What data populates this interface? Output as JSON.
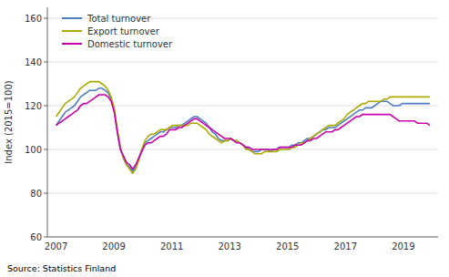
{
  "chart_data": {
    "type": "line",
    "ylabel": "Index (2015=100)",
    "source": "Source: Statistics Finland",
    "xlim": [
      2006.7,
      2020.2
    ],
    "xticks": [
      2007,
      2009,
      2011,
      2013,
      2015,
      2017,
      2019
    ],
    "ylim": [
      60,
      165
    ],
    "yticks": [
      60,
      80,
      100,
      120,
      140,
      160
    ],
    "grid": "y",
    "legend": "upper left",
    "x": [
      2007,
      2007.1059,
      2007.2117,
      2007.3176,
      2007.4235,
      2007.5294,
      2007.6352,
      2007.7411,
      2007.847,
      2007.9529,
      2008.0587,
      2008.1646,
      2008.2705,
      2008.3764,
      2008.4822,
      2008.5881,
      2008.694,
      2008.7999,
      2008.9057,
      2009.0116,
      2009.1175,
      2009.2234,
      2009.3292,
      2009.4351,
      2009.541,
      2009.6469,
      2009.7527,
      2009.8586,
      2009.9645,
      2010.0704,
      2010.1762,
      2010.2821,
      2010.388,
      2010.4939,
      2010.5997,
      2010.7056,
      2010.8115,
      2010.9174,
      2011.0232,
      2011.1291,
      2011.235,
      2011.3409,
      2011.4467,
      2011.5526,
      2011.6585,
      2011.7644,
      2011.8702,
      2011.9761,
      2012.082,
      2012.1879,
      2012.2937,
      2012.3996,
      2012.5055,
      2012.6114,
      2012.7172,
      2012.8231,
      2012.929,
      2013.0349,
      2013.1407,
      2013.2466,
      2013.3525,
      2013.4584,
      2013.5642,
      2013.6701,
      2013.776,
      2013.8818,
      2013.9877,
      2014.0936,
      2014.1995,
      2014.3053,
      2014.4112,
      2014.5171,
      2014.623,
      2014.7288,
      2014.8347,
      2014.9406,
      2015.0465,
      2015.1523,
      2015.2582,
      2015.3641,
      2015.47,
      2015.5758,
      2015.6817,
      2015.7876,
      2015.8935,
      2015.9993,
      2016.1052,
      2016.2111,
      2016.317,
      2016.4228,
      2016.5287,
      2016.6346,
      2016.7405,
      2016.8463,
      2016.9522,
      2017.0581,
      2017.164,
      2017.2698,
      2017.3757,
      2017.4816,
      2017.5875,
      2017.6933,
      2017.7992,
      2017.9051,
      2018.011,
      2018.1168,
      2018.2227,
      2018.3286,
      2018.4345,
      2018.5403,
      2018.6462,
      2018.7521,
      2018.858,
      2018.9638,
      2019.0697,
      2019.1756,
      2019.2815,
      2019.3873,
      2019.4932,
      2019.5991,
      2019.705,
      2019.8108,
      2019.9167
    ],
    "series": [
      {
        "name": "Total turnover",
        "color": "#4E7FBF",
        "values": [
          111,
          113,
          115,
          117,
          118,
          119,
          120,
          122,
          124,
          125,
          126,
          127,
          127,
          127,
          128,
          128,
          127,
          126,
          123,
          118,
          108,
          100,
          96,
          93,
          92,
          90,
          92,
          96,
          100,
          103,
          104,
          105,
          106,
          107,
          108,
          108,
          109,
          110,
          110,
          110,
          111,
          111,
          112,
          113,
          114,
          115,
          115,
          114,
          113,
          112,
          110,
          108,
          107,
          105,
          104,
          104,
          104,
          105,
          104,
          104,
          103,
          102,
          101,
          100,
          99,
          99,
          99,
          100,
          100,
          100,
          99,
          100,
          100,
          101,
          101,
          101,
          101,
          102,
          102,
          103,
          103,
          104,
          105,
          105,
          106,
          107,
          108,
          109,
          109,
          110,
          110,
          110,
          111,
          112,
          113,
          114,
          115,
          116,
          117,
          118,
          118,
          119,
          119,
          119,
          120,
          121,
          122,
          122,
          122,
          121,
          120,
          120,
          120,
          121,
          121,
          121,
          121,
          121,
          121,
          121,
          121,
          121,
          121
        ]
      },
      {
        "name": "Export turnover",
        "color": "#AAAA00",
        "values": [
          115,
          117,
          119,
          121,
          122,
          123,
          124,
          126,
          128,
          129,
          130,
          131,
          131,
          131,
          131,
          130,
          129,
          127,
          124,
          119,
          109,
          101,
          96,
          93,
          91,
          89,
          91,
          95,
          100,
          104,
          106,
          107,
          107,
          108,
          109,
          109,
          109,
          110,
          111,
          111,
          111,
          111,
          111,
          111,
          112,
          112,
          112,
          111,
          110,
          109,
          107,
          106,
          105,
          104,
          103,
          104,
          104,
          105,
          104,
          104,
          103,
          102,
          100,
          100,
          99,
          98,
          98,
          98,
          99,
          99,
          99,
          99,
          99,
          100,
          100,
          100,
          100,
          101,
          101,
          102,
          103,
          103,
          104,
          105,
          106,
          107,
          108,
          109,
          110,
          111,
          111,
          111,
          112,
          113,
          114,
          116,
          117,
          118,
          119,
          120,
          121,
          121,
          122,
          122,
          122,
          122,
          122,
          123,
          123,
          124,
          124,
          124,
          124,
          124,
          124,
          124,
          124,
          124,
          124,
          124,
          124,
          124,
          124
        ]
      },
      {
        "name": "Domestic turnover",
        "color": "#CC00AA",
        "values": [
          111,
          112,
          113,
          114,
          115,
          116,
          117,
          118,
          120,
          121,
          121,
          122,
          123,
          124,
          125,
          125,
          125,
          124,
          122,
          117,
          108,
          100,
          97,
          94,
          93,
          91,
          93,
          96,
          99,
          102,
          103,
          103,
          104,
          105,
          106,
          106,
          107,
          109,
          109,
          109,
          110,
          110,
          111,
          112,
          113,
          114,
          114,
          113,
          112,
          111,
          110,
          109,
          108,
          107,
          106,
          105,
          105,
          105,
          104,
          103,
          103,
          102,
          101,
          101,
          100,
          100,
          100,
          100,
          100,
          100,
          100,
          100,
          100,
          101,
          101,
          101,
          101,
          101,
          102,
          102,
          102,
          103,
          104,
          104,
          105,
          105,
          106,
          107,
          108,
          108,
          108,
          109,
          109,
          110,
          111,
          112,
          113,
          114,
          115,
          115,
          116,
          116,
          116,
          116,
          116,
          116,
          116,
          116,
          116,
          116,
          115,
          114,
          113,
          113,
          113,
          113,
          113,
          113,
          112,
          112,
          112,
          112,
          111
        ]
      }
    ]
  }
}
